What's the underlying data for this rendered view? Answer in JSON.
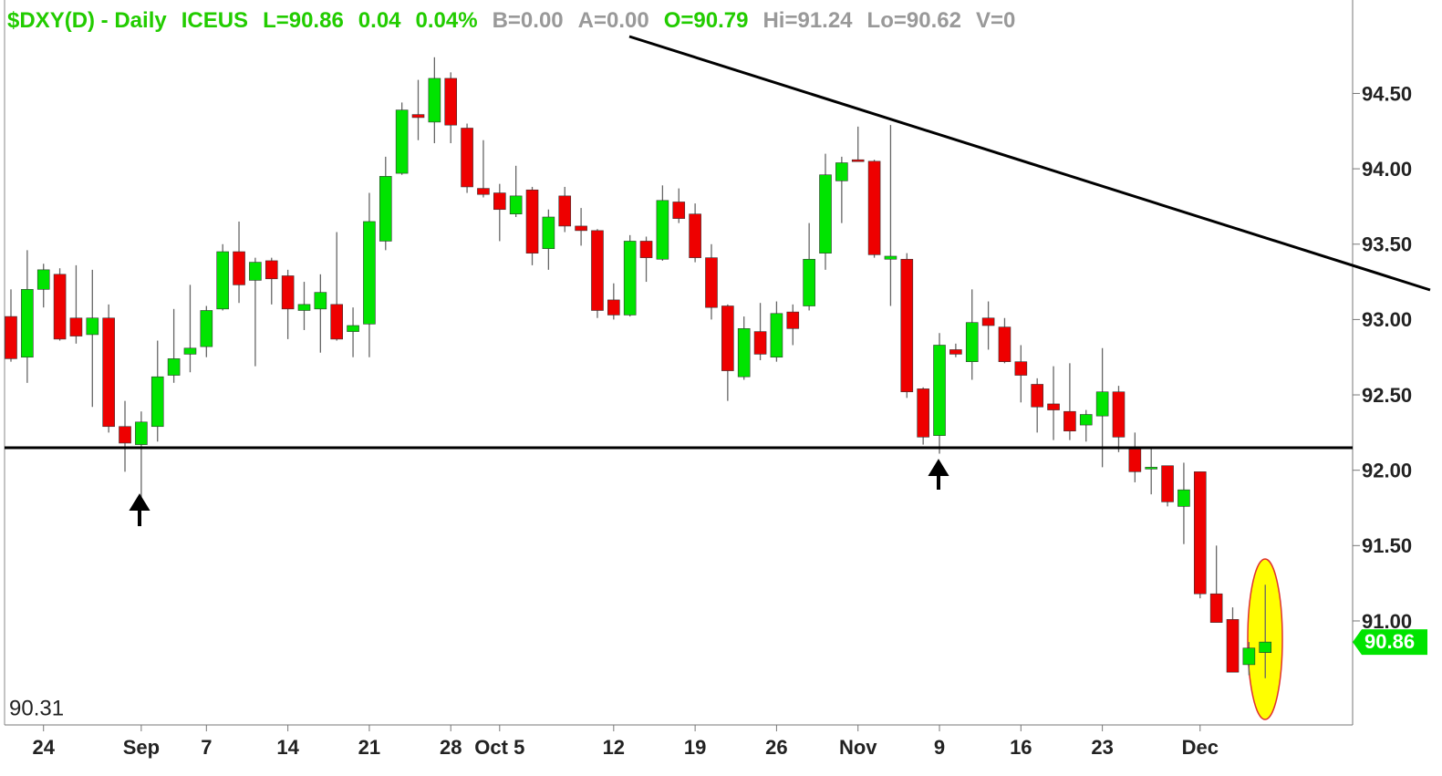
{
  "chart_data": {
    "type": "candlestick",
    "header": [
      {
        "text": "$DXY(D) - Daily",
        "color": "#22cc00"
      },
      {
        "text": "ICEUS",
        "color": "#22cc00"
      },
      {
        "text": "L=90.86",
        "color": "#22cc00"
      },
      {
        "text": "0.04",
        "color": "#22cc00"
      },
      {
        "text": "0.04%",
        "color": "#22cc00"
      },
      {
        "text": "B=0.00",
        "color": "#999999"
      },
      {
        "text": "A=0.00",
        "color": "#999999"
      },
      {
        "text": "O=90.79",
        "color": "#22cc00"
      },
      {
        "text": "Hi=91.24",
        "color": "#999999"
      },
      {
        "text": "Lo=90.62",
        "color": "#999999"
      },
      {
        "text": "V=0",
        "color": "#999999"
      }
    ],
    "categories": [
      null,
      null,
      "24",
      null,
      null,
      null,
      null,
      null,
      "Sep",
      null,
      null,
      null,
      "7",
      null,
      null,
      null,
      null,
      "14",
      null,
      null,
      null,
      null,
      "21",
      null,
      null,
      null,
      null,
      "28",
      null,
      null,
      "Oct 5",
      null,
      null,
      null,
      null,
      null,
      null,
      "12",
      null,
      null,
      null,
      null,
      "19",
      null,
      null,
      null,
      null,
      "26",
      null,
      null,
      null,
      null,
      "Nov",
      null,
      null,
      null,
      null,
      "9",
      null,
      null,
      null,
      null,
      "16",
      null,
      null,
      null,
      null,
      "23",
      null,
      null,
      null,
      null,
      null,
      "Dec",
      null,
      null,
      null,
      null
    ],
    "open": [
      93.02,
      92.75,
      93.2,
      93.3,
      93.01,
      92.9,
      93.01,
      92.29,
      92.17,
      92.29,
      92.63,
      92.77,
      92.82,
      93.07,
      93.45,
      93.26,
      93.39,
      93.29,
      93.06,
      93.07,
      93.1,
      92.92,
      92.97,
      93.52,
      93.97,
      94.36,
      94.31,
      94.6,
      94.27,
      93.87,
      93.84,
      93.7,
      93.86,
      93.47,
      93.82,
      93.62,
      93.59,
      93.13,
      93.03,
      93.52,
      93.4,
      93.78,
      93.7,
      93.41,
      93.09,
      92.62,
      92.92,
      92.75,
      93.05,
      93.09,
      93.44,
      93.92,
      94.06,
      94.05,
      93.4,
      93.4,
      92.54,
      92.23,
      92.8,
      92.72,
      93.01,
      92.95,
      92.72,
      92.57,
      92.44,
      92.39,
      92.3,
      92.36,
      92.52,
      92.14,
      92.01,
      92.03,
      91.76,
      91.99,
      91.18,
      91.01,
      90.71,
      90.79
    ],
    "high": [
      93.2,
      93.46,
      93.37,
      93.34,
      93.36,
      93.33,
      93.1,
      92.46,
      92.39,
      92.86,
      93.07,
      93.23,
      93.09,
      93.5,
      93.65,
      93.41,
      93.41,
      93.33,
      93.25,
      93.3,
      93.58,
      93.08,
      93.84,
      94.08,
      94.44,
      94.59,
      94.74,
      94.64,
      94.3,
      94.19,
      93.9,
      94.02,
      93.88,
      93.73,
      93.88,
      93.74,
      93.6,
      93.24,
      93.56,
      93.55,
      93.89,
      93.87,
      93.77,
      93.5,
      93.1,
      93.02,
      93.11,
      93.12,
      93.1,
      93.64,
      94.1,
      94.08,
      94.28,
      94.06,
      94.29,
      93.44,
      92.55,
      92.91,
      92.84,
      93.2,
      93.12,
      93.01,
      92.83,
      92.61,
      92.69,
      92.71,
      92.4,
      92.81,
      92.56,
      92.25,
      92.15,
      92.03,
      92.05,
      91.99,
      91.5,
      91.09,
      90.86,
      91.24
    ],
    "low": [
      92.72,
      92.58,
      93.08,
      92.86,
      92.84,
      92.42,
      92.25,
      91.99,
      91.76,
      92.19,
      92.58,
      92.65,
      92.75,
      93.06,
      93.11,
      92.69,
      93.1,
      92.87,
      92.93,
      92.78,
      92.86,
      92.75,
      92.75,
      93.46,
      93.96,
      94.19,
      94.17,
      94.17,
      93.84,
      93.81,
      93.52,
      93.68,
      93.36,
      93.33,
      93.58,
      93.49,
      93.01,
      93.0,
      93.02,
      93.25,
      93.39,
      93.64,
      93.38,
      93.0,
      92.46,
      92.6,
      92.73,
      92.72,
      92.83,
      93.06,
      93.33,
      93.64,
      94.05,
      93.41,
      93.09,
      92.48,
      92.17,
      92.11,
      92.75,
      92.6,
      92.8,
      92.71,
      92.45,
      92.25,
      92.2,
      92.2,
      92.19,
      92.02,
      92.12,
      91.92,
      91.84,
      91.76,
      91.51,
      91.15,
      90.99,
      90.66,
      90.64,
      90.62
    ],
    "close": [
      92.74,
      93.2,
      93.33,
      92.87,
      92.89,
      93.01,
      92.29,
      92.18,
      92.32,
      92.62,
      92.74,
      92.81,
      93.06,
      93.45,
      93.23,
      93.38,
      93.27,
      93.07,
      93.1,
      93.18,
      92.87,
      92.96,
      93.65,
      93.95,
      94.39,
      94.34,
      94.6,
      94.29,
      93.88,
      93.83,
      93.73,
      93.82,
      93.44,
      93.68,
      93.62,
      93.59,
      93.06,
      93.03,
      93.52,
      93.41,
      93.79,
      93.67,
      93.41,
      93.08,
      92.66,
      92.94,
      92.77,
      93.04,
      92.94,
      93.4,
      93.96,
      94.04,
      94.06,
      93.43,
      93.42,
      92.52,
      92.22,
      92.83,
      92.77,
      92.98,
      92.96,
      92.72,
      92.63,
      92.42,
      92.4,
      92.26,
      92.37,
      92.52,
      92.22,
      91.99,
      92.02,
      91.79,
      91.87,
      91.18,
      90.99,
      90.66,
      90.82,
      90.86
    ],
    "up_color": "#00e400",
    "down_color": "#ee0000",
    "ylim": [
      90.31,
      95.12
    ],
    "yticks": [
      {
        "value": 91,
        "label": "91.00"
      },
      {
        "value": 91.5,
        "label": "91.50"
      },
      {
        "value": 92,
        "label": "92.00"
      },
      {
        "value": 92.5,
        "label": "92.50"
      },
      {
        "value": 93,
        "label": "93.00"
      },
      {
        "value": 93.5,
        "label": "93.50"
      },
      {
        "value": 94,
        "label": "94.00"
      },
      {
        "value": 94.5,
        "label": "94.50"
      }
    ]
  }
}
